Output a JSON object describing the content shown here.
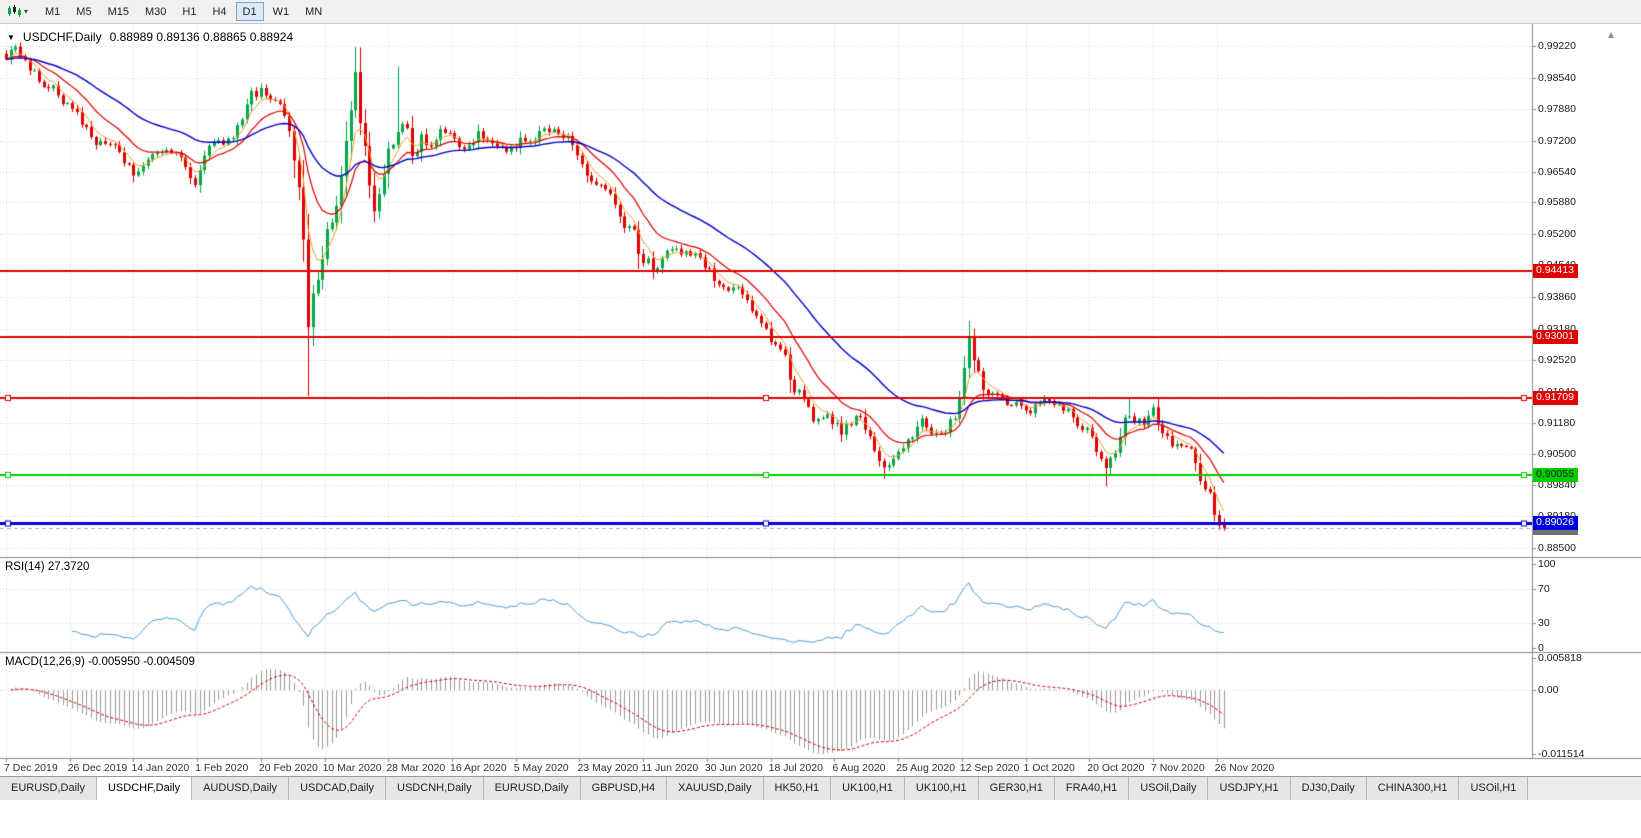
{
  "toolbar": {
    "timeframes": [
      "M1",
      "M5",
      "M15",
      "M30",
      "H1",
      "H4",
      "D1",
      "W1",
      "MN"
    ],
    "active_timeframe": "D1"
  },
  "chart": {
    "symbol": "USDCHF,Daily",
    "ohlc_text": "0.88989 0.89136 0.88865 0.88924"
  },
  "rsi": {
    "label": "RSI(14) 27.3720",
    "axis": [
      {
        "text": "100",
        "value": 100
      },
      {
        "text": "70",
        "value": 70
      },
      {
        "text": "30",
        "value": 30
      },
      {
        "text": "0",
        "value": 0
      }
    ]
  },
  "macd": {
    "label": "MACD(12,26,9) -0.005950 -0.004509",
    "axis": [
      {
        "text": "0.005818",
        "value": 0.005818
      },
      {
        "text": "0.00",
        "value": 0
      },
      {
        "text": "-0.011514",
        "value": -0.011514
      }
    ]
  },
  "price_axis": {
    "labels": [
      0.9922,
      0.9854,
      0.9788,
      0.972,
      0.9654,
      0.9588,
      0.952,
      0.9454,
      0.9386,
      0.9318,
      0.9252,
      0.9184,
      0.9118,
      0.905,
      0.8984,
      0.8918,
      0.885
    ],
    "badges": [
      {
        "text": "0.94413",
        "price": 0.94413,
        "bg": "#e00000",
        "fg": "#ffffff"
      },
      {
        "text": "0.93001",
        "price": 0.93001,
        "bg": "#e00000",
        "fg": "#ffffff"
      },
      {
        "text": "0.91709",
        "price": 0.91709,
        "bg": "#e00000",
        "fg": "#ffffff"
      },
      {
        "text": "0.90055",
        "price": 0.90055,
        "bg": "#00cc00",
        "fg": "#00280a"
      },
      {
        "text": "0.88924",
        "price": 0.88924,
        "bg": "#6e6e6e",
        "fg": "#ffffff"
      },
      {
        "text": "0.89026",
        "price": 0.89026,
        "bg": "#0000e0",
        "fg": "#ffffff"
      }
    ]
  },
  "date_axis": {
    "labels": [
      "7 Dec 2019",
      "26 Dec 2019",
      "14 Jan 2020",
      "1 Feb 2020",
      "20 Feb 2020",
      "10 Mar 2020",
      "28 Mar 2020",
      "16 Apr 2020",
      "5 May 2020",
      "23 May 2020",
      "11 Jun 2020",
      "30 Jun 2020",
      "18 Jul 2020",
      "6 Aug 2020",
      "25 Aug 2020",
      "12 Sep 2020",
      "1 Oct 2020",
      "20 Oct 2020",
      "7 Nov 2020",
      "26 Nov 2020"
    ]
  },
  "tabs": {
    "active_index": 1,
    "items": [
      "EURUSD,Daily",
      "USDCHF,Daily",
      "AUDUSD,Daily",
      "USDCAD,Daily",
      "USDCNH,Daily",
      "EURUSD,Daily",
      "GBPUSD,H4",
      "XAUUSD,Daily",
      "HK50,H1",
      "UK100,H1",
      "UK100,H1",
      "GER30,H1",
      "FRA40,H1",
      "USOil,Daily",
      "USDJPY,H1",
      "DJ30,Daily",
      "CHINA300,H1",
      "USOil,H1"
    ]
  },
  "chart_data": {
    "type": "candlestick",
    "symbol": "USDCHF",
    "timeframe": "D1",
    "bars": 259,
    "price_range": [
      0.88308,
      0.9969
    ],
    "last_bar": {
      "open": 0.88989,
      "high": 0.89136,
      "low": 0.88865,
      "close": 0.88924
    },
    "colors": {
      "bull": "#00a846",
      "bear": "#e00000",
      "grid": "#dadada",
      "bid_line": "#aaaaaa"
    },
    "anchors": [
      [
        0,
        0.99
      ],
      [
        2,
        0.9915
      ],
      [
        5,
        0.9872
      ],
      [
        9,
        0.9838
      ],
      [
        13,
        0.98
      ],
      [
        16,
        0.9758
      ],
      [
        19,
        0.9718
      ],
      [
        23,
        0.97
      ],
      [
        27,
        0.9652
      ],
      [
        30,
        0.9672
      ],
      [
        34,
        0.9695
      ],
      [
        37,
        0.968
      ],
      [
        40,
        0.9642
      ],
      [
        43,
        0.969
      ],
      [
        47,
        0.9718
      ],
      [
        50,
        0.9762
      ],
      [
        54,
        0.984
      ],
      [
        56,
        0.9812
      ],
      [
        58,
        0.978
      ],
      [
        60,
        0.973
      ],
      [
        62,
        0.962
      ],
      [
        63,
        0.948
      ],
      [
        64,
        0.931
      ],
      [
        65,
        0.94
      ],
      [
        67,
        0.948
      ],
      [
        69,
        0.956
      ],
      [
        71,
        0.965
      ],
      [
        73,
        0.98
      ],
      [
        74,
        0.986
      ],
      [
        75,
        0.978
      ],
      [
        77,
        0.964
      ],
      [
        78,
        0.957
      ],
      [
        80,
        0.963
      ],
      [
        82,
        0.972
      ],
      [
        84,
        0.9762
      ],
      [
        86,
        0.97
      ],
      [
        88,
        0.9742
      ],
      [
        90,
        0.9692
      ],
      [
        92,
        0.9726
      ],
      [
        94,
        0.9732
      ],
      [
        97,
        0.97
      ],
      [
        100,
        0.9748
      ],
      [
        103,
        0.9718
      ],
      [
        107,
        0.9702
      ],
      [
        110,
        0.9724
      ],
      [
        114,
        0.9744
      ],
      [
        118,
        0.973
      ],
      [
        121,
        0.9702
      ],
      [
        124,
        0.9648
      ],
      [
        127,
        0.9606
      ],
      [
        131,
        0.9552
      ],
      [
        134,
        0.9484
      ],
      [
        137,
        0.9448
      ],
      [
        140,
        0.9516
      ],
      [
        143,
        0.949
      ],
      [
        147,
        0.947
      ],
      [
        150,
        0.9434
      ],
      [
        153,
        0.9406
      ],
      [
        156,
        0.939
      ],
      [
        158,
        0.9354
      ],
      [
        161,
        0.933
      ],
      [
        164,
        0.927
      ],
      [
        167,
        0.9195
      ],
      [
        170,
        0.914
      ],
      [
        172,
        0.9116
      ],
      [
        174,
        0.9122
      ],
      [
        177,
        0.9098
      ],
      [
        180,
        0.9138
      ],
      [
        183,
        0.9072
      ],
      [
        186,
        0.9012
      ],
      [
        188,
        0.9042
      ],
      [
        191,
        0.9082
      ],
      [
        194,
        0.9112
      ],
      [
        197,
        0.9086
      ],
      [
        199,
        0.9106
      ],
      [
        201,
        0.9142
      ],
      [
        203,
        0.9238
      ],
      [
        204,
        0.9276
      ],
      [
        206,
        0.9236
      ],
      [
        208,
        0.9186
      ],
      [
        211,
        0.9166
      ],
      [
        214,
        0.9152
      ],
      [
        217,
        0.9142
      ],
      [
        220,
        0.9162
      ],
      [
        223,
        0.9146
      ],
      [
        226,
        0.9132
      ],
      [
        229,
        0.9096
      ],
      [
        231,
        0.9062
      ],
      [
        233,
        0.9012
      ],
      [
        235,
        0.9062
      ],
      [
        237,
        0.9132
      ],
      [
        239,
        0.9126
      ],
      [
        241,
        0.9116
      ],
      [
        243,
        0.9136
      ],
      [
        245,
        0.9112
      ],
      [
        247,
        0.9086
      ],
      [
        249,
        0.9062
      ],
      [
        251,
        0.9042
      ],
      [
        253,
        0.9004
      ],
      [
        254,
        0.8966
      ],
      [
        255,
        0.8944
      ],
      [
        256,
        0.8916
      ],
      [
        257,
        0.8898
      ],
      [
        258,
        0.8892
      ]
    ],
    "spikes": [
      {
        "bar": 64,
        "type": "low",
        "price": 0.9174
      },
      {
        "bar": 74,
        "type": "high",
        "price": 0.992
      },
      {
        "bar": 83,
        "type": "high",
        "price": 0.9878
      },
      {
        "bar": 186,
        "type": "low",
        "price": 0.8998
      },
      {
        "bar": 204,
        "type": "high",
        "price": 0.9295
      },
      {
        "bar": 233,
        "type": "low",
        "price": 0.8982
      },
      {
        "bar": 238,
        "type": "high",
        "price": 0.9168
      }
    ],
    "hlines": [
      {
        "price": 0.94413,
        "color": "#e00000",
        "width": 2,
        "handles": false
      },
      {
        "price": 0.93001,
        "color": "#e00000",
        "width": 2,
        "handles": false
      },
      {
        "price": 0.91709,
        "color": "#e00000",
        "width": 2,
        "handles": true
      },
      {
        "price": 0.90055,
        "color": "#00cc00",
        "width": 2,
        "handles": true
      },
      {
        "price": 0.89026,
        "color": "#0000e0",
        "width": 3,
        "handles": true
      }
    ],
    "moving_averages": [
      {
        "period": 5,
        "color": "#f0a030",
        "width": 1
      },
      {
        "period": 13,
        "color": "#e00000",
        "width": 1.2
      },
      {
        "period": 34,
        "color": "#0000cc",
        "width": 1.4
      }
    ],
    "indicators": {
      "rsi": {
        "period": 14,
        "color": "#4f9fd8",
        "levels": [
          70,
          30
        ],
        "last": 27.372,
        "range": [
          0,
          100
        ]
      },
      "macd": {
        "fast": 12,
        "slow": 26,
        "signal": 9,
        "histogram_color": "#9a9a9a",
        "signal_color": "#e00000",
        "last": -0.00595,
        "last_signal": -0.004509,
        "range": [
          -0.011514,
          0.005818
        ]
      }
    }
  }
}
